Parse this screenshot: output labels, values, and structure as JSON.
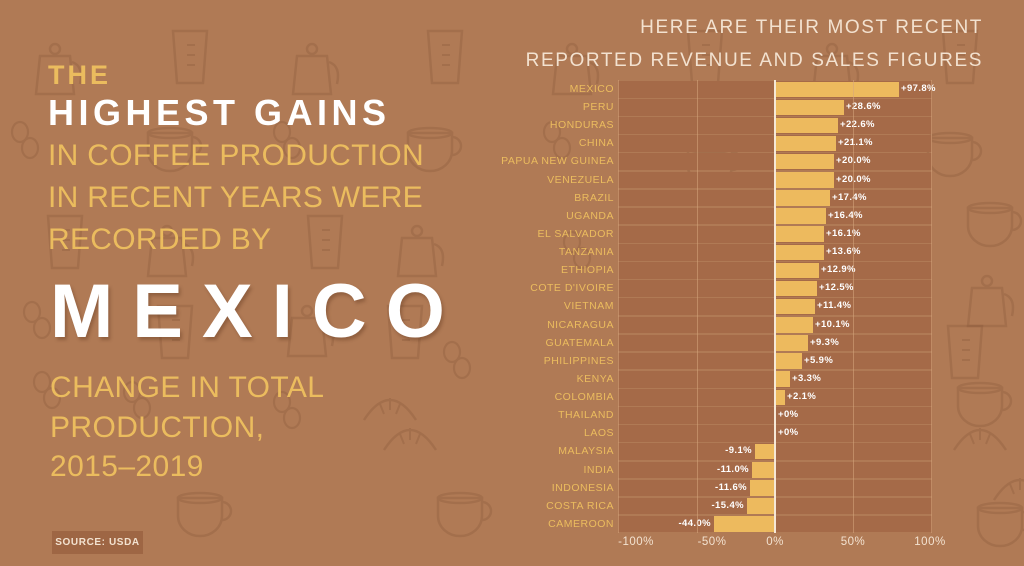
{
  "headline": {
    "the": "THE",
    "highest_gains": "HIGHEST GAINS",
    "sub_lines": [
      "IN COFFEE PRODUCTION",
      "IN RECENT YEARS WERE",
      "RECORDED BY"
    ],
    "country": "MEXICO",
    "change_lines": [
      "CHANGE IN TOTAL",
      "PRODUCTION,",
      "2015–2019"
    ]
  },
  "source": "SOURCE: USDA",
  "chart_title_lines": [
    "HERE ARE THEIR MOST RECENT",
    "REPORTED REVENUE AND SALES FIGURES"
  ],
  "colors": {
    "background": "#B07A55",
    "accent_yellow": "#EBBC5E",
    "bar": "#EDBA5E",
    "band": "#A56A48",
    "white": "#FFFFFF",
    "cream": "#F3E2D0"
  },
  "chart_data": {
    "type": "bar",
    "orientation": "horizontal",
    "title": "HERE ARE THEIR MOST RECENT REPORTED REVENUE AND SALES FIGURES",
    "subtitle": "Change in total production, 2015–2019",
    "xlabel": "",
    "ylabel": "",
    "xlim": [
      -100,
      100
    ],
    "xticks": [
      "-100%",
      "-50%",
      "0%",
      "50%",
      "100%"
    ],
    "grid": true,
    "legend": null,
    "categories": [
      "MEXICO",
      "PERU",
      "HONDURAS",
      "CHINA",
      "PAPUA NEW GUINEA",
      "VENEZUELA",
      "BRAZIL",
      "UGANDA",
      "EL SALVADOR",
      "TANZANIA",
      "ETHIOPIA",
      "COTE D'IVOIRE",
      "VIETNAM",
      "NICARAGUA",
      "GUATEMALA",
      "PHILIPPINES",
      "KENYA",
      "COLOMBIA",
      "THAILAND",
      "LAOS",
      "MALAYSIA",
      "INDIA",
      "INDONESIA",
      "COSTA RICA",
      "CAMEROON"
    ],
    "values": [
      97.8,
      28.6,
      22.6,
      21.1,
      20.0,
      20.0,
      17.4,
      16.4,
      16.1,
      13.6,
      12.9,
      12.5,
      11.4,
      10.1,
      9.3,
      5.9,
      3.3,
      2.1,
      0,
      0,
      -9.1,
      -11.0,
      -11.6,
      -15.4,
      -44.0
    ],
    "value_labels": [
      "+97.8%",
      "+28.6%",
      "+22.6%",
      "+21.1%",
      "+20.0%",
      "+20.0%",
      "+17.4%",
      "+16.4%",
      "+16.1%",
      "+13.6%",
      "+12.9%",
      "+12.5%",
      "+11.4%",
      "+10.1%",
      "+9.3%",
      "+5.9%",
      "+3.3%",
      "+2.1%",
      "+0%",
      "+0%",
      "-9.1%",
      "-11.0%",
      "-11.6%",
      "-15.4%",
      "-44.0%"
    ],
    "bar_pixel_lengths": [
      123,
      68,
      62,
      60,
      58,
      58,
      54,
      50,
      48,
      48,
      43,
      41,
      39,
      37,
      32,
      26,
      14,
      9,
      0,
      0,
      19,
      22,
      24,
      27,
      60
    ],
    "units": "%"
  }
}
